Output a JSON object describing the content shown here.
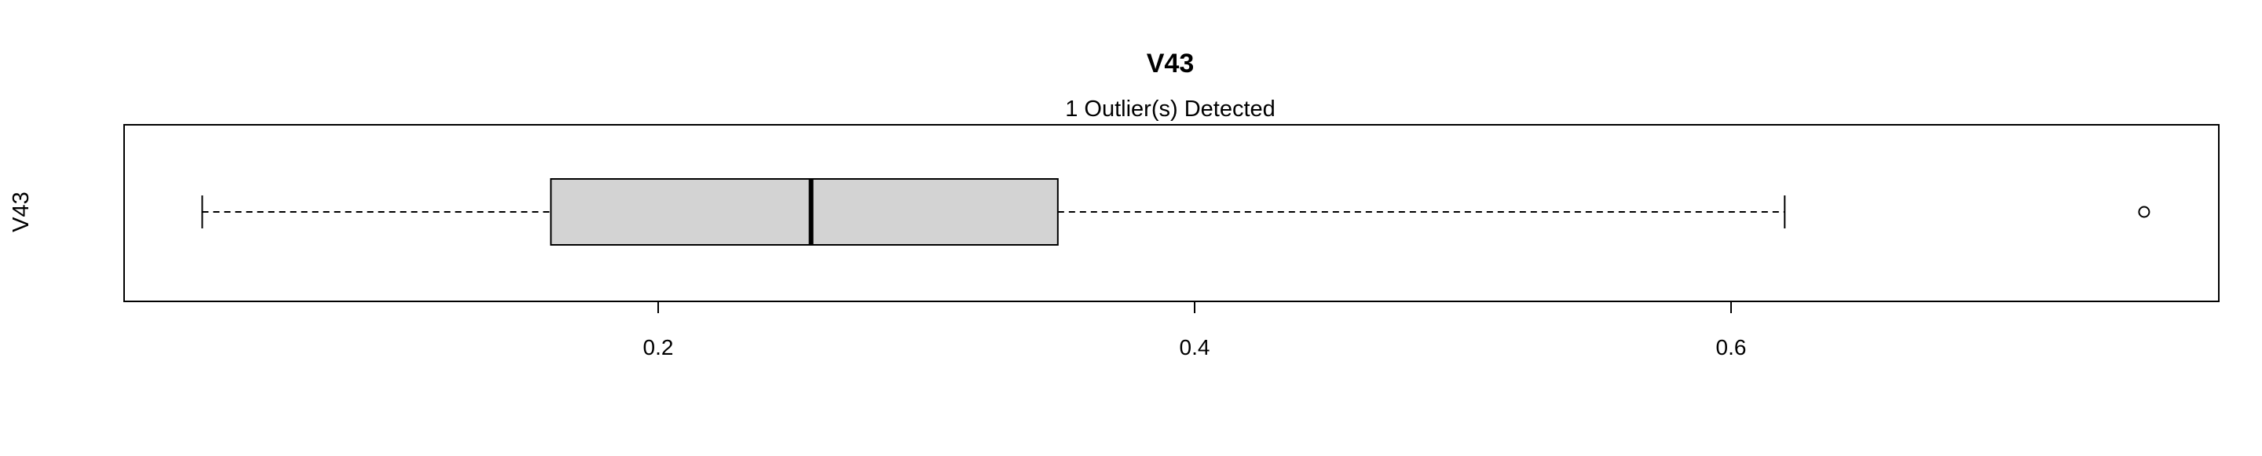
{
  "chart_data": {
    "type": "boxplot",
    "orientation": "horizontal",
    "title": "V43",
    "subtitle": "1 Outlier(s) Detected",
    "ylabel": "V43",
    "xlabel": "",
    "xlim": [
      0.0,
      0.78
    ],
    "xticks": [
      0.2,
      0.4,
      0.6
    ],
    "xtick_labels": [
      "0.2",
      "0.4",
      "0.6"
    ],
    "grid": false,
    "series": [
      {
        "whisker_low": 0.03,
        "q1": 0.16,
        "median": 0.257,
        "q3": 0.349,
        "whisker_high": 0.62,
        "outliers": [
          0.754
        ]
      }
    ],
    "colors": {
      "box_fill": "#d3d3d3",
      "stroke": "#000000",
      "background": "#ffffff"
    }
  }
}
